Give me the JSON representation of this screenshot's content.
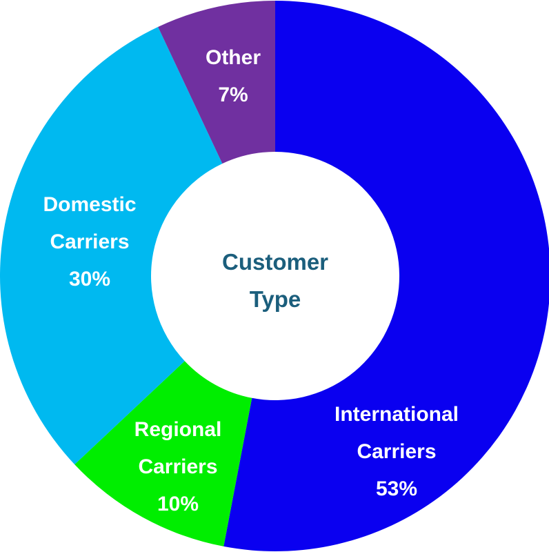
{
  "chart_data": {
    "type": "donut",
    "center_label": "Customer Type",
    "categories": [
      "International Carriers",
      "Regional Carriers",
      "Domestic Carriers",
      "Other"
    ],
    "values": [
      53,
      10,
      30,
      7
    ],
    "value_labels": [
      "53%",
      "10%",
      "30%",
      "7%"
    ],
    "colors": [
      "#0a00f0",
      "#00ee00",
      "#00b9f0",
      "#7030a0"
    ]
  }
}
